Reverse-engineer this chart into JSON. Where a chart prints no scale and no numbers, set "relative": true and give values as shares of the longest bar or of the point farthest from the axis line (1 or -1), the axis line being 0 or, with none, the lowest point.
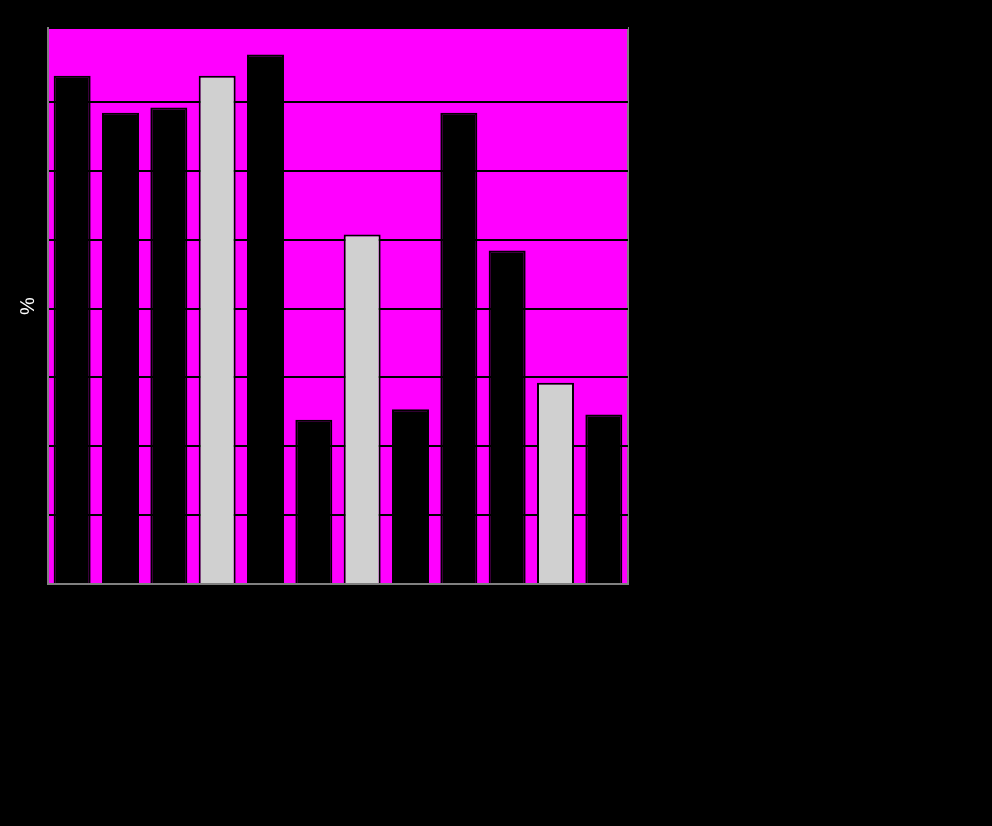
{
  "chart_data": {
    "type": "bar",
    "ylabel": "%",
    "relative": true,
    "grid": "y",
    "categories": [
      null,
      null,
      null,
      null,
      null,
      null,
      null,
      null,
      null,
      null,
      null,
      null
    ],
    "values": [
      0.96,
      0.89,
      0.9,
      0.96,
      1,
      0.31,
      0.66,
      0.33,
      0.89,
      0.63,
      0.38,
      0.32
    ],
    "colors": [
      "#000000",
      "#000000",
      "#000000",
      "#d0d0d0",
      "#000000",
      "#000000",
      "#d0d0d0",
      "#000000",
      "#000000",
      "#000000",
      "#d0d0d0",
      "#000000"
    ]
  }
}
